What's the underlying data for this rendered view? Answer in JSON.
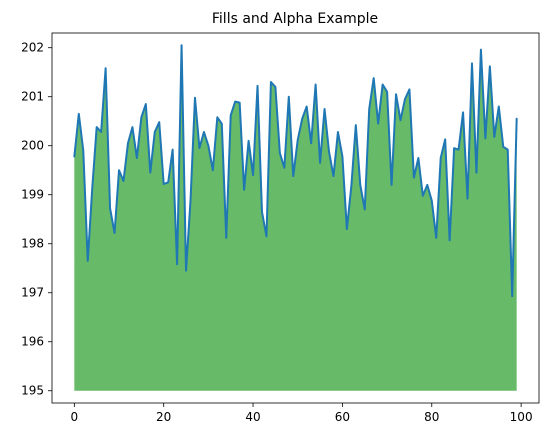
{
  "chart_data": {
    "type": "area",
    "title": "Fills and Alpha Example",
    "xlabel": "",
    "ylabel": "",
    "xlim": [
      -5,
      104
    ],
    "ylim": [
      194.75,
      202.3
    ],
    "xticks": [
      0,
      20,
      40,
      60,
      80,
      100
    ],
    "yticks": [
      195,
      196,
      197,
      198,
      199,
      200,
      201,
      202
    ],
    "grid": false,
    "legend": "none",
    "fill_baseline": 195,
    "colors": {
      "line": "#1f77b4",
      "fill": "#2ca02c",
      "fill_alpha": 0.72
    },
    "x_start": 0,
    "x_step": 1,
    "values": [
      199.78,
      200.65,
      199.9,
      197.65,
      199.12,
      200.38,
      200.28,
      201.58,
      198.72,
      198.22,
      199.5,
      199.28,
      200.05,
      200.38,
      199.75,
      200.58,
      200.85,
      199.45,
      200.28,
      200.48,
      199.22,
      199.25,
      199.92,
      197.58,
      202.05,
      197.45,
      198.88,
      200.98,
      199.95,
      200.28,
      200.0,
      199.5,
      200.58,
      200.45,
      198.12,
      200.62,
      200.9,
      200.88,
      199.1,
      200.1,
      199.4,
      201.22,
      198.65,
      198.15,
      201.3,
      201.2,
      199.85,
      199.55,
      201.0,
      199.38,
      200.12,
      200.55,
      200.8,
      200.05,
      201.25,
      199.65,
      200.75,
      199.88,
      199.38,
      200.28,
      199.78,
      198.3,
      199.18,
      200.42,
      199.2,
      198.7,
      200.75,
      201.38,
      200.45,
      201.25,
      201.1,
      199.2,
      201.05,
      200.52,
      200.95,
      201.15,
      199.35,
      199.75,
      198.98,
      199.2,
      198.88,
      198.12,
      199.75,
      200.13,
      198.07,
      199.95,
      199.92,
      200.68,
      198.92,
      201.68,
      199.45,
      201.96,
      200.15,
      201.62,
      200.18,
      200.8,
      199.98,
      199.92,
      196.93,
      200.55
    ]
  }
}
